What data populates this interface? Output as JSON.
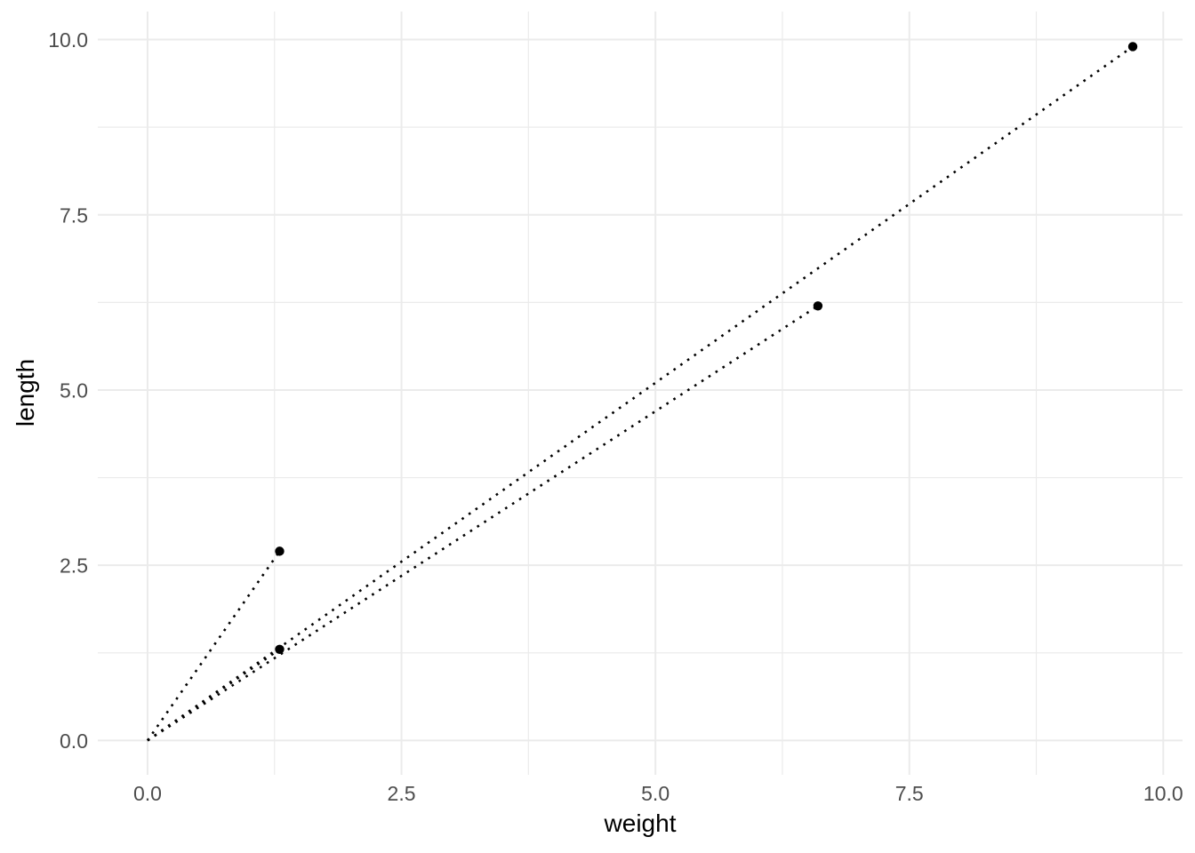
{
  "chart_data": {
    "type": "scatter",
    "title": "",
    "xlabel": "weight",
    "ylabel": "length",
    "x_ticks": {
      "major": [
        0.0,
        2.5,
        5.0,
        7.5,
        10.0
      ],
      "minor": [
        1.25,
        3.75,
        6.25,
        8.75
      ],
      "labels": [
        "0.0",
        "2.5",
        "5.0",
        "7.5",
        "10.0"
      ]
    },
    "y_ticks": {
      "major": [
        0.0,
        2.5,
        5.0,
        7.5,
        10.0
      ],
      "minor": [
        1.25,
        3.75,
        6.25,
        8.75
      ],
      "labels": [
        "0.0",
        "2.5",
        "5.0",
        "7.5",
        "10.0"
      ]
    },
    "xlim": [
      -0.49,
      10.19
    ],
    "ylim": [
      -0.49,
      10.4
    ],
    "grid": true,
    "legend": "none",
    "points": [
      {
        "weight": 1.3,
        "length": 2.7
      },
      {
        "weight": 1.3,
        "length": 1.3
      },
      {
        "weight": 6.6,
        "length": 6.2
      },
      {
        "weight": 9.7,
        "length": 9.9
      }
    ],
    "segments": [
      {
        "x1": 0,
        "y1": 0,
        "x2": 1.3,
        "y2": 2.7
      },
      {
        "x1": 0,
        "y1": 0,
        "x2": 1.3,
        "y2": 1.3
      },
      {
        "x1": 0,
        "y1": 0,
        "x2": 6.6,
        "y2": 6.2
      },
      {
        "x1": 0,
        "y1": 0,
        "x2": 9.7,
        "y2": 9.9
      }
    ],
    "line_style": "dotted",
    "colors": {
      "background": "#ffffff",
      "gridline": "#ebebeb",
      "tick_label": "#4d4d4d",
      "axis_title": "#000000",
      "point": "#000000",
      "line": "#000000"
    }
  }
}
